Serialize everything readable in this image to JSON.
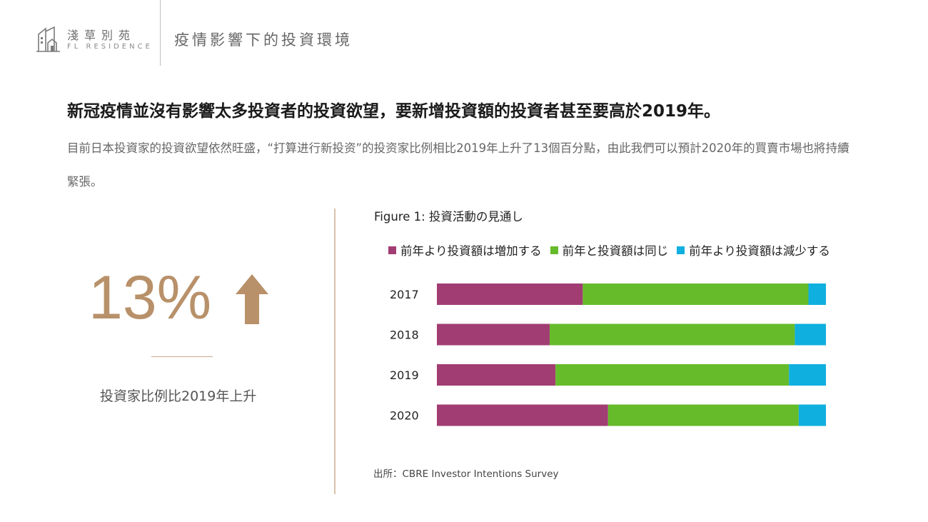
{
  "header": {
    "brand_cn": "淺草別苑",
    "brand_en": "FL RESIDENCE",
    "section_title": "疫情影響下的投資環境"
  },
  "headline": "新冠疫情並沒有影響太多投資者的投資欲望，要新增投資額的投資者甚至要高於2019年。",
  "body_text": "目前日本投資家的投資欲望依然旺盛，“打算进行新投资”的投资家比例相比2019年上升了13個百分點，由此我們可以預計2020年的買賣市場也將持續緊張。",
  "stat": {
    "value": "13%",
    "caption": "投資家比例比2019年上升",
    "color": "#b8916a"
  },
  "chart_data": {
    "type": "bar",
    "orientation": "horizontal",
    "stacked": true,
    "percent_stacked": true,
    "title": "Figure 1: 投資活動の見通し",
    "categories": [
      "2017",
      "2018",
      "2019",
      "2020"
    ],
    "series": [
      {
        "name": "前年より投資額は増加する",
        "color": "#a23d73",
        "values": [
          37.5,
          29,
          30.5,
          44
        ]
      },
      {
        "name": "前年と投資額は同じ",
        "color": "#66bb2a",
        "values": [
          58,
          63,
          60,
          49
        ]
      },
      {
        "name": "前年より投資額は減少する",
        "color": "#0fafdf",
        "values": [
          4.5,
          8,
          9.5,
          7
        ]
      }
    ],
    "xlim": [
      0,
      100
    ],
    "grid": false,
    "legend": "top",
    "source": "出所：CBRE Investor Intentions Survey"
  }
}
